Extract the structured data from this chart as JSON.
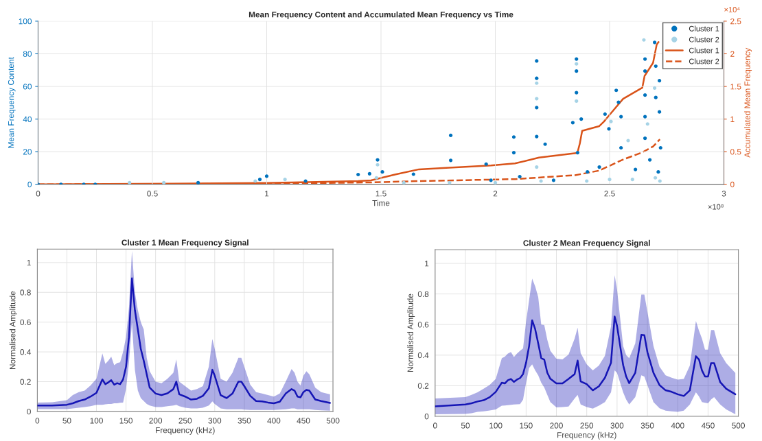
{
  "chart_data": [
    {
      "type": "scatter",
      "title": "Mean Frequency Content and Accumulated Mean Frequency vs Time",
      "xlabel": "Time",
      "ylabel": "Mean Frequency Content",
      "y2label": "Accumulated Mean Frequency",
      "xlim": [
        0,
        3
      ],
      "xticks": [
        0,
        0.5,
        1,
        1.5,
        2,
        2.5,
        3
      ],
      "ylim": [
        0,
        100
      ],
      "yticks": [
        0,
        20,
        40,
        60,
        80,
        100
      ],
      "y2lim": [
        0,
        2.5
      ],
      "y2ticks": [
        0,
        0.5,
        1,
        1.5,
        2,
        2.5
      ],
      "grid": true,
      "legend": "top right",
      "annotations": [
        "×10⁸",
        "×10⁴"
      ],
      "series": [
        {
          "type": "scatter",
          "name": "Cluster 1",
          "color": "#0072bd",
          "marker": "circle",
          "x": [
            0,
            0.1,
            0.2,
            0.25,
            0.7,
            0.97,
            1.0,
            1.17,
            1.4,
            1.45,
            1.485,
            1.506,
            1.642,
            1.805,
            1.805,
            1.96,
            1.981,
            2.081,
            2.081,
            2.107,
            2.181,
            2.181,
            2.181,
            2.181,
            2.218,
            2.255,
            2.339,
            2.355,
            2.355,
            2.355,
            2.36,
            2.376,
            2.403,
            2.455,
            2.48,
            2.497,
            2.529,
            2.539,
            2.55,
            2.55,
            2.613,
            2.655,
            2.655,
            2.655,
            2.655,
            2.655,
            2.676,
            2.697,
            2.702,
            2.702,
            2.713,
            2.718,
            2.718,
            2.723
          ],
          "values": [
            0,
            0,
            0,
            0,
            1,
            3,
            5,
            2,
            6,
            6.5,
            15,
            7.6,
            6.2,
            30,
            14.7,
            12.4,
            2.5,
            29,
            19.4,
            4.7,
            75.6,
            65,
            47,
            29.3,
            24.6,
            2.5,
            37.8,
            76.8,
            69.4,
            56.2,
            19.4,
            40,
            7.6,
            10.6,
            43,
            34,
            57.6,
            50.3,
            22.4,
            41.5,
            9.1,
            76.8,
            69.4,
            54.7,
            41.5,
            28.2,
            15,
            87,
            72.4,
            53.2,
            7.6,
            63.5,
            44.4,
            22.4
          ]
        },
        {
          "type": "scatter",
          "name": "Cluster 2",
          "color": "#a6d3e6",
          "marker": "circle",
          "x": [
            0.4,
            0.55,
            0.95,
            1.08,
            1.48,
            1.485,
            1.6,
            1.8,
            2.0,
            2.181,
            2.181,
            2.181,
            2.2,
            2.355,
            2.355,
            2.4,
            2.5,
            2.506,
            2.581,
            2.6,
            2.65,
            2.666,
            2.697,
            2.7,
            2.72
          ],
          "values": [
            1,
            1,
            2,
            3,
            4,
            12,
            1,
            1,
            1,
            62,
            52.5,
            10.6,
            2,
            73.8,
            51,
            2,
            3,
            38.5,
            26.8,
            3,
            88.5,
            37,
            59,
            4,
            2
          ]
        },
        {
          "type": "line",
          "axis": "y2",
          "name": "Cluster 1",
          "color": "#d95319",
          "line_style": "solid",
          "x": [
            0,
            1.0,
            1.4,
            1.456,
            1.561,
            1.666,
            1.771,
            1.981,
            2.086,
            2.191,
            2.359,
            2.37,
            2.38,
            2.454,
            2.475,
            2.506,
            2.559,
            2.643,
            2.653,
            2.69,
            2.706,
            2.714
          ],
          "values": [
            0,
            0.02,
            0.05,
            0.06,
            0.15,
            0.23,
            0.25,
            0.29,
            0.32,
            0.41,
            0.48,
            0.63,
            0.82,
            0.89,
            0.96,
            1.09,
            1.31,
            1.48,
            1.66,
            1.86,
            2.14,
            2.18
          ]
        },
        {
          "type": "line",
          "axis": "y2",
          "name": "Cluster 2",
          "color": "#d95319",
          "line_style": "dashed",
          "x": [
            0,
            1.0,
            1.456,
            1.666,
            2.086,
            2.349,
            2.454,
            2.559,
            2.643,
            2.69,
            2.72
          ],
          "values": [
            0,
            0.01,
            0.03,
            0.05,
            0.08,
            0.14,
            0.21,
            0.38,
            0.49,
            0.58,
            0.69
          ]
        }
      ]
    },
    {
      "type": "line",
      "title": "Cluster 1 Mean Frequency Signal",
      "xlabel": "Frequency (kHz)",
      "ylabel": "Normalised Amplitude",
      "xlim": [
        0,
        500
      ],
      "xticks": [
        0,
        50,
        100,
        150,
        200,
        250,
        300,
        350,
        400,
        450,
        500
      ],
      "ylim": [
        0,
        1.09
      ],
      "yticks": [
        0,
        0.2,
        0.4,
        0.6,
        0.8,
        1
      ],
      "grid": true,
      "series": [
        {
          "color": "#1515b5",
          "x": [
            0,
            25,
            50,
            60,
            70,
            80,
            90,
            100,
            110,
            115,
            120,
            125,
            130,
            135,
            140,
            145,
            150,
            155,
            160,
            165,
            170,
            175,
            180,
            185,
            190,
            200,
            210,
            220,
            230,
            235,
            240,
            250,
            260,
            270,
            280,
            290,
            296,
            300,
            310,
            320,
            330,
            340,
            345,
            350,
            360,
            370,
            380,
            390,
            400,
            410,
            420,
            430,
            435,
            440,
            445,
            450,
            455,
            460,
            470,
            480,
            495
          ],
          "values": [
            0.04,
            0.04,
            0.045,
            0.055,
            0.07,
            0.08,
            0.1,
            0.125,
            0.215,
            0.183,
            0.195,
            0.21,
            0.18,
            0.19,
            0.183,
            0.215,
            0.3,
            0.5,
            0.894,
            0.68,
            0.55,
            0.42,
            0.34,
            0.25,
            0.16,
            0.12,
            0.11,
            0.122,
            0.15,
            0.2,
            0.115,
            0.1,
            0.08,
            0.085,
            0.105,
            0.155,
            0.28,
            0.24,
            0.11,
            0.09,
            0.12,
            0.2,
            0.2,
            0.17,
            0.105,
            0.07,
            0.068,
            0.06,
            0.055,
            0.065,
            0.12,
            0.15,
            0.14,
            0.1,
            0.095,
            0.13,
            0.145,
            0.14,
            0.08,
            0.07,
            0.057
          ],
          "lower": [
            0.016,
            0.016,
            0.016,
            0.02,
            0.025,
            0.03,
            0.035,
            0.044,
            0.045,
            0.048,
            0.05,
            0.05,
            0.055,
            0.055,
            0.058,
            0.06,
            0.15,
            0.33,
            0.597,
            0.28,
            0.14,
            0.09,
            0.07,
            0.05,
            0.04,
            0.03,
            0.03,
            0.035,
            0.04,
            0.044,
            0.035,
            0.025,
            0.02,
            0.02,
            0.025,
            0.04,
            0.068,
            0.05,
            0.02,
            0.015,
            0.015,
            0.015,
            0.015,
            0.012,
            0.01,
            0.01,
            0.01,
            0.01,
            0.01,
            0.012,
            0.015,
            0.02,
            0.02,
            0.015,
            0.015,
            0.015,
            0.015,
            0.015,
            0.01,
            0.008,
            0.005
          ],
          "upper": [
            0.06,
            0.062,
            0.076,
            0.11,
            0.13,
            0.14,
            0.175,
            0.22,
            0.39,
            0.32,
            0.34,
            0.368,
            0.31,
            0.325,
            0.33,
            0.4,
            0.5,
            0.7,
            1.079,
            0.8,
            0.68,
            0.6,
            0.55,
            0.36,
            0.27,
            0.2,
            0.19,
            0.22,
            0.26,
            0.35,
            0.2,
            0.17,
            0.14,
            0.15,
            0.17,
            0.3,
            0.487,
            0.42,
            0.22,
            0.2,
            0.26,
            0.36,
            0.36,
            0.3,
            0.18,
            0.13,
            0.12,
            0.11,
            0.1,
            0.12,
            0.2,
            0.285,
            0.26,
            0.2,
            0.175,
            0.24,
            0.27,
            0.25,
            0.16,
            0.13,
            0.115
          ]
        }
      ]
    },
    {
      "type": "line",
      "title": "Cluster 2 Mean Frequency Signal",
      "xlabel": "Frequency (kHz)",
      "ylabel": "Normalised Amplitude",
      "xlim": [
        0,
        500
      ],
      "xticks": [
        0,
        50,
        100,
        150,
        200,
        250,
        300,
        350,
        400,
        450,
        500
      ],
      "ylim": [
        0,
        1.09
      ],
      "yticks": [
        0,
        0.2,
        0.4,
        0.6,
        0.8,
        1
      ],
      "grid": true,
      "series": [
        {
          "color": "#1515b5",
          "x": [
            0,
            50,
            60,
            70,
            80,
            90,
            100,
            110,
            115,
            120,
            125,
            130,
            135,
            140,
            145,
            150,
            155,
            160,
            165,
            170,
            175,
            180,
            185,
            190,
            200,
            210,
            220,
            230,
            235,
            240,
            250,
            260,
            270,
            280,
            290,
            296,
            300,
            310,
            315,
            320,
            330,
            340,
            345,
            350,
            360,
            370,
            380,
            390,
            400,
            410,
            420,
            430,
            435,
            440,
            445,
            450,
            455,
            460,
            470,
            480,
            495
          ],
          "values": [
            0.065,
            0.077,
            0.085,
            0.097,
            0.105,
            0.125,
            0.16,
            0.22,
            0.215,
            0.236,
            0.244,
            0.225,
            0.24,
            0.25,
            0.276,
            0.35,
            0.46,
            0.628,
            0.57,
            0.476,
            0.38,
            0.37,
            0.285,
            0.245,
            0.215,
            0.215,
            0.244,
            0.276,
            0.364,
            0.228,
            0.21,
            0.17,
            0.196,
            0.252,
            0.35,
            0.652,
            0.59,
            0.335,
            0.26,
            0.217,
            0.284,
            0.532,
            0.53,
            0.42,
            0.284,
            0.204,
            0.17,
            0.16,
            0.144,
            0.133,
            0.17,
            0.393,
            0.372,
            0.3,
            0.26,
            0.26,
            0.348,
            0.348,
            0.224,
            0.18,
            0.144
          ],
          "lower": [
            0.013,
            0.016,
            0.02,
            0.029,
            0.033,
            0.038,
            0.045,
            0.069,
            0.071,
            0.073,
            0.075,
            0.077,
            0.078,
            0.08,
            0.109,
            0.22,
            0.316,
            0.34,
            0.3,
            0.268,
            0.22,
            0.188,
            0.14,
            0.093,
            0.058,
            0.06,
            0.064,
            0.117,
            0.14,
            0.077,
            0.061,
            0.05,
            0.07,
            0.093,
            0.157,
            0.3,
            0.284,
            0.157,
            0.11,
            0.077,
            0.125,
            0.268,
            0.26,
            0.204,
            0.093,
            0.053,
            0.037,
            0.033,
            0.029,
            0.037,
            0.077,
            0.157,
            0.13,
            0.093,
            0.088,
            0.085,
            0.11,
            0.125,
            0.077,
            0.045,
            0.013
          ],
          "upper": [
            0.117,
            0.125,
            0.14,
            0.157,
            0.18,
            0.205,
            0.244,
            0.38,
            0.39,
            0.41,
            0.42,
            0.388,
            0.41,
            0.428,
            0.444,
            0.62,
            0.76,
            0.9,
            0.85,
            0.78,
            0.6,
            0.596,
            0.5,
            0.428,
            0.377,
            0.372,
            0.404,
            0.508,
            0.58,
            0.412,
            0.34,
            0.3,
            0.332,
            0.396,
            0.588,
            0.923,
            0.828,
            0.46,
            0.4,
            0.38,
            0.476,
            0.796,
            0.796,
            0.684,
            0.46,
            0.324,
            0.268,
            0.252,
            0.24,
            0.244,
            0.332,
            0.623,
            0.56,
            0.508,
            0.436,
            0.436,
            0.564,
            0.564,
            0.412,
            0.348,
            0.284
          ]
        }
      ]
    }
  ]
}
